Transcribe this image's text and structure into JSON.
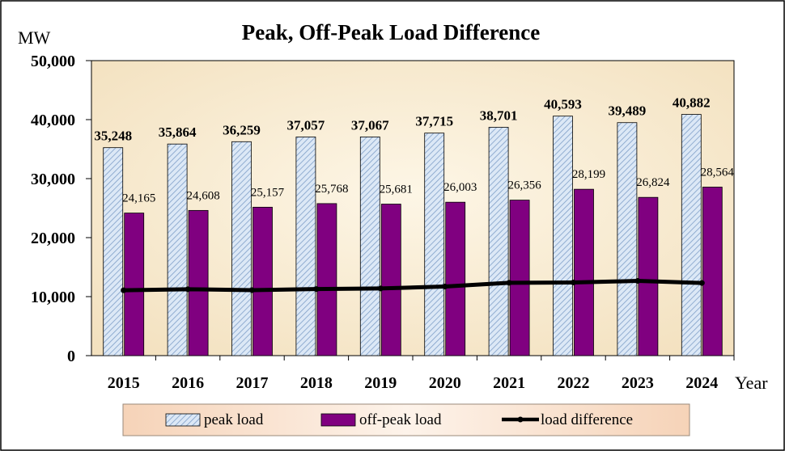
{
  "chart_data": {
    "type": "bar",
    "title": "Peak, Off-Peak Load Difference",
    "ylabel": "MW",
    "xlabel": "Year",
    "ylim": [
      0,
      50000
    ],
    "yticks": [
      0,
      10000,
      20000,
      30000,
      40000,
      50000
    ],
    "ytick_labels": [
      "0",
      "10,000",
      "20,000",
      "30,000",
      "40,000",
      "50,000"
    ],
    "categories": [
      "2015",
      "2016",
      "2017",
      "2018",
      "2019",
      "2020",
      "2021",
      "2022",
      "2023",
      "2024"
    ],
    "series": [
      {
        "name": "peak load",
        "kind": "bar",
        "values": [
          35248,
          35864,
          36259,
          37057,
          37067,
          37715,
          38701,
          40593,
          39489,
          40882
        ],
        "labels": [
          "35,248",
          "35,864",
          "36,259",
          "37,057",
          "37,067",
          "37,715",
          "38,701",
          "40,593",
          "39,489",
          "40,882"
        ]
      },
      {
        "name": "off-peak load",
        "kind": "bar",
        "values": [
          24165,
          24608,
          25157,
          25768,
          25681,
          26003,
          26356,
          28199,
          26824,
          28564
        ],
        "labels": [
          "24,165",
          "24,608",
          "25,157",
          "25,768",
          "25,681",
          "26,003",
          "26,356",
          "28,199",
          "26,824",
          "28,564"
        ]
      },
      {
        "name": "load difference",
        "kind": "line",
        "values": [
          11083,
          11256,
          11102,
          11289,
          11386,
          11712,
          12345,
          12394,
          12665,
          12318
        ]
      }
    ],
    "legend_position": "bottom",
    "grid": false,
    "colors": {
      "plot_background": "#faeed6",
      "peak_fill": "#dce8f6",
      "peak_hatch": "#7f9fc8",
      "offpeak_fill": "#800080",
      "line": "#000000",
      "legend_background": "#f8ddc8"
    }
  }
}
